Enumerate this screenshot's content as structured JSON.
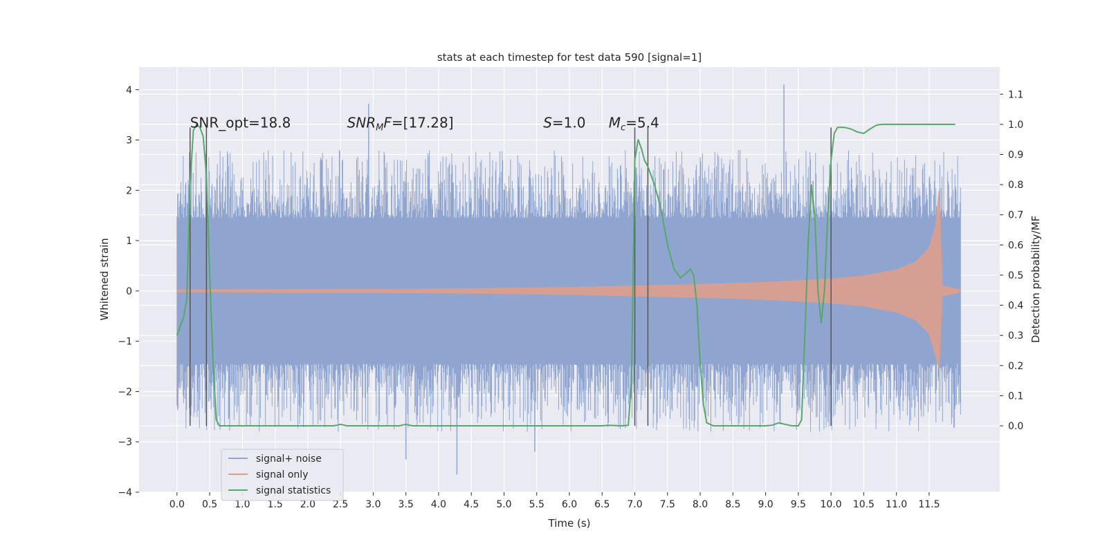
{
  "chart_data": {
    "type": "line",
    "title": "stats at each timestep for test data 590 [signal=1]",
    "xlabel": "Time (s)",
    "ylabel": "Whitened strain",
    "y2label": "Detection probability/MF",
    "xlim": [
      -0.58,
      12.58
    ],
    "ylim": [
      -4.0,
      4.45
    ],
    "y2lim": [
      -0.22,
      1.19
    ],
    "xticks": [
      "0.0",
      "0.5",
      "1.0",
      "1.5",
      "2.0",
      "2.5",
      "3.0",
      "3.5",
      "4.0",
      "4.5",
      "5.0",
      "5.5",
      "6.0",
      "6.5",
      "7.0",
      "7.5",
      "8.0",
      "8.5",
      "9.0",
      "9.5",
      "10.0",
      "10.5",
      "11.0",
      "11.5"
    ],
    "yticks": [
      "4",
      "3",
      "2",
      "1",
      "0",
      "−1",
      "−2",
      "−3",
      "−4"
    ],
    "y2ticks": [
      "1.1",
      "1.0",
      "0.9",
      "0.8",
      "0.7",
      "0.6",
      "0.5",
      "0.4",
      "0.3",
      "0.2",
      "0.1",
      "0.0"
    ],
    "grid": true,
    "legend_position": "lower-left",
    "annotations": [
      {
        "text": "SNR_opt=18.8",
        "x": 0.2,
        "y": 3.25
      },
      {
        "text": "SNR_MF=[17.28]",
        "x": 2.6,
        "y": 3.25
      },
      {
        "text": "S=1.0",
        "x": 5.6,
        "y": 3.25
      },
      {
        "text": "M_c=5.4",
        "x": 6.6,
        "y": 3.25
      }
    ],
    "vlines": [
      0.2,
      0.45,
      7.0,
      7.2,
      10.0
    ],
    "series": [
      {
        "name": "signal+ noise",
        "color": "#8fa5cf",
        "x_range": [
          0.0,
          11.98
        ],
        "envelope_typical": 1.45,
        "envelope_peak_max": 4.1,
        "envelope_peak_min": -3.65
      },
      {
        "name": "signal only",
        "color": "#dd9f8c",
        "envelope": {
          "x": [
            0.0,
            2.0,
            4.0,
            6.0,
            7.0,
            8.0,
            9.0,
            10.0,
            10.5,
            11.0,
            11.3,
            11.5,
            11.6,
            11.65,
            11.7,
            11.98
          ],
          "amp": [
            0.02,
            0.03,
            0.04,
            0.07,
            0.1,
            0.13,
            0.17,
            0.24,
            0.3,
            0.42,
            0.58,
            0.85,
            1.3,
            2.0,
            0.1,
            0.02
          ]
        }
      },
      {
        "name": "signal statistics",
        "color": "#55a868",
        "x": [
          0.0,
          0.1,
          0.15,
          0.2,
          0.25,
          0.3,
          0.35,
          0.4,
          0.45,
          0.5,
          0.55,
          0.6,
          0.65,
          0.7,
          1.0,
          2.0,
          2.4,
          2.5,
          2.6,
          3.0,
          3.4,
          3.5,
          3.6,
          3.8,
          5.0,
          6.0,
          6.5,
          6.6,
          6.8,
          6.9,
          6.95,
          7.0,
          7.05,
          7.1,
          7.15,
          7.2,
          7.3,
          7.4,
          7.5,
          7.6,
          7.7,
          7.8,
          7.85,
          7.9,
          7.95,
          8.0,
          8.05,
          8.1,
          8.2,
          8.5,
          9.0,
          9.1,
          9.2,
          9.3,
          9.4,
          9.5,
          9.55,
          9.6,
          9.65,
          9.7,
          9.75,
          9.8,
          9.85,
          9.9,
          9.95,
          10.0,
          10.05,
          10.1,
          10.15,
          10.2,
          10.3,
          10.4,
          10.5,
          10.6,
          10.7,
          10.8,
          11.0,
          11.5,
          11.9
        ],
        "y": [
          0.3,
          0.36,
          0.42,
          0.8,
          0.98,
          1.0,
          0.99,
          0.96,
          0.83,
          0.5,
          0.22,
          0.02,
          0.0,
          0.0,
          0.0,
          0.0,
          0.0,
          0.005,
          0.0,
          0.0,
          0.0,
          0.005,
          0.0,
          0.0,
          0.0,
          0.0,
          0.0,
          0.002,
          0.0,
          0.002,
          0.15,
          0.88,
          0.95,
          0.92,
          0.88,
          0.86,
          0.8,
          0.72,
          0.6,
          0.52,
          0.49,
          0.51,
          0.52,
          0.5,
          0.4,
          0.2,
          0.07,
          0.01,
          0.0,
          0.0,
          0.0,
          0.002,
          0.01,
          0.005,
          0.0,
          0.0,
          0.02,
          0.3,
          0.6,
          0.8,
          0.7,
          0.45,
          0.34,
          0.45,
          0.7,
          0.88,
          0.97,
          0.99,
          0.99,
          0.99,
          0.985,
          0.975,
          0.97,
          0.985,
          0.998,
          1.0,
          1.0,
          1.0,
          1.0
        ]
      }
    ]
  }
}
